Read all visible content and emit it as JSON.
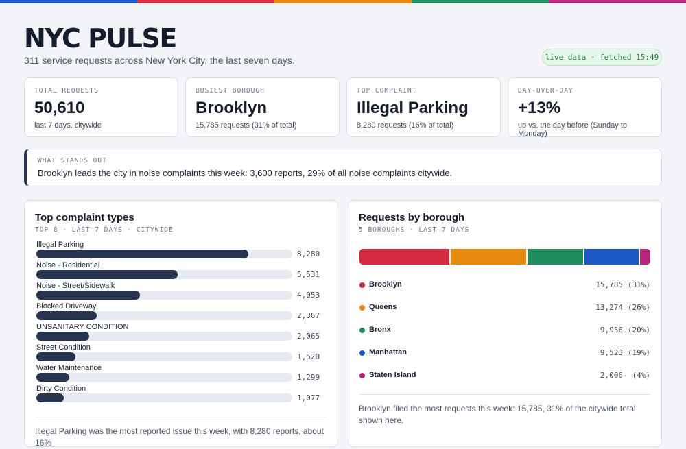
{
  "header": {
    "title": "NYC PULSE",
    "subtitle": "311 service requests across New York City, the last seven days.",
    "status": "live data · fetched 15:49"
  },
  "kpis": [
    {
      "label": "TOTAL REQUESTS",
      "value": "50,610",
      "note": "last 7 days, citywide"
    },
    {
      "label": "BUSIEST BOROUGH",
      "value": "Brooklyn",
      "note": "15,785 requests (31% of total)"
    },
    {
      "label": "TOP COMPLAINT",
      "value": "Illegal Parking",
      "note": "8,280 requests (16% of total)"
    },
    {
      "label": "DAY-OVER-DAY",
      "value": "+13%",
      "note": "up vs. the day before (Sunday to Monday)"
    }
  ],
  "insight": {
    "label": "WHAT STANDS OUT",
    "text": "Brooklyn leads the city in noise complaints this week: 3,600 reports, 29% of all noise complaints citywide."
  },
  "chart_data": [
    {
      "type": "bar",
      "title": "Top complaint types",
      "subtitle": "TOP 8 · LAST 7 DAYS · CITYWIDE",
      "categories": [
        "Illegal Parking",
        "Noise - Residential",
        "Noise - Street/Sidewalk",
        "Blocked Driveway",
        "UNSANITARY CONDITION",
        "Street Condition",
        "Water Maintenance",
        "Dirty Condition"
      ],
      "values": [
        8280,
        5531,
        4053,
        2367,
        2065,
        1520,
        1299,
        1077
      ],
      "value_labels": [
        "8,280",
        "5,531",
        "4,053",
        "2,367",
        "2,065",
        "1,520",
        "1,299",
        "1,077"
      ],
      "color": "#27344f",
      "xlim": [
        0,
        10000
      ],
      "note": "Illegal Parking was the most reported issue this week, with 8,280 reports, about 16%"
    },
    {
      "type": "stacked-bar",
      "title": "Requests by borough",
      "subtitle": "5 BOROUGHS · LAST 7 DAYS",
      "series": [
        {
          "name": "Brooklyn",
          "color": "#d22a3f",
          "values": [
            15785
          ],
          "value_labels": [
            "15,785"
          ],
          "share": 31,
          "share_label": "(31%)"
        },
        {
          "name": "Queens",
          "color": "#e98a10",
          "values": [
            13274
          ],
          "value_labels": [
            "13,274"
          ],
          "share": 26,
          "share_label": "(26%)"
        },
        {
          "name": "Bronx",
          "color": "#1f8b5b",
          "values": [
            9956
          ],
          "value_labels": [
            "9,956"
          ],
          "share": 20,
          "share_label": "(20%)"
        },
        {
          "name": "Manhattan",
          "color": "#1b57c5",
          "values": [
            9523
          ],
          "value_labels": [
            "9,523"
          ],
          "share": 19,
          "share_label": "(19%)"
        },
        {
          "name": "Staten Island",
          "color": "#b6257b",
          "values": [
            2006
          ],
          "value_labels": [
            "2,006"
          ],
          "share": 4,
          "share_label": "(4%)"
        }
      ],
      "note": "Brooklyn filed the most requests this week: 15,785, 31% of the citywide total shown here."
    }
  ]
}
